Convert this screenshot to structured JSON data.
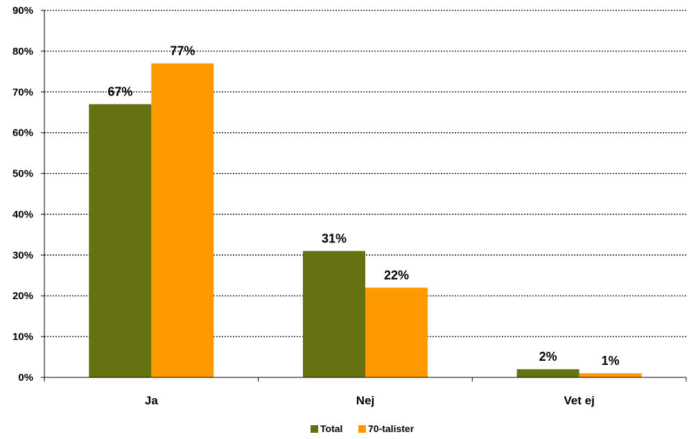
{
  "chart_data": {
    "type": "bar",
    "title": "",
    "xlabel": "",
    "ylabel": "",
    "categories": [
      "Ja",
      "Nej",
      "Vet ej"
    ],
    "series": [
      {
        "name": "Total",
        "values": [
          67,
          31,
          2
        ],
        "labels": [
          "67%",
          "31%",
          "2%"
        ],
        "color": "#667111"
      },
      {
        "name": "70-talister",
        "values": [
          77,
          22,
          1
        ],
        "labels": [
          "77%",
          "22%",
          "1%"
        ],
        "color": "#FF9900"
      }
    ],
    "ylim": [
      0,
      90
    ],
    "yticks": [
      0,
      10,
      20,
      30,
      40,
      50,
      60,
      70,
      80,
      90
    ],
    "ytick_labels": [
      "0%",
      "10%",
      "20%",
      "30%",
      "40%",
      "50%",
      "60%",
      "70%",
      "80%",
      "90%"
    ],
    "grid": "horizontal-dotted",
    "legend": "bottom-center"
  }
}
